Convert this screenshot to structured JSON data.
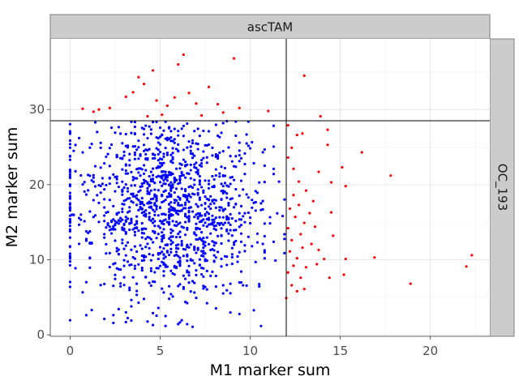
{
  "chart_data": {
    "type": "scatter",
    "title": "",
    "facet_col_label": "ascTAM",
    "facet_row_label": "OC_193",
    "xlabel": "M1 marker sum",
    "ylabel": "M2 marker sum",
    "xlim": [
      -1.1,
      23.3
    ],
    "ylim": [
      -0.2,
      39.4
    ],
    "x_ticks": [
      0,
      5,
      10,
      15,
      20
    ],
    "y_ticks": [
      0,
      10,
      20,
      30
    ],
    "grid": true,
    "legend": "none",
    "thresholds": {
      "x": 12,
      "y": 28.5
    },
    "colors": {
      "inside": "#0000ff",
      "outside": "#ff0000",
      "threshold_line": "#000000"
    },
    "seed": 193,
    "main_cluster": {
      "count": 1300,
      "x_center": 5.6,
      "x_sd": 2.5,
      "y_center": 17.5,
      "y_sd": 6.5
    },
    "outliers": [
      {
        "x": 0.7,
        "y": 30.1
      },
      {
        "x": 1.3,
        "y": 29.7
      },
      {
        "x": 1.6,
        "y": 30.0
      },
      {
        "x": 2.2,
        "y": 30.2
      },
      {
        "x": 3.1,
        "y": 31.7
      },
      {
        "x": 3.5,
        "y": 32.3
      },
      {
        "x": 3.8,
        "y": 34.3
      },
      {
        "x": 4.1,
        "y": 33.4
      },
      {
        "x": 4.3,
        "y": 29.1
      },
      {
        "x": 4.6,
        "y": 35.2
      },
      {
        "x": 4.8,
        "y": 31.2
      },
      {
        "x": 5.1,
        "y": 29.3
      },
      {
        "x": 5.4,
        "y": 30.5
      },
      {
        "x": 5.8,
        "y": 31.6
      },
      {
        "x": 6.0,
        "y": 36.0
      },
      {
        "x": 6.3,
        "y": 37.3
      },
      {
        "x": 6.6,
        "y": 32.2
      },
      {
        "x": 7.0,
        "y": 30.8
      },
      {
        "x": 7.3,
        "y": 29.2
      },
      {
        "x": 7.7,
        "y": 33.0
      },
      {
        "x": 8.2,
        "y": 30.7
      },
      {
        "x": 8.5,
        "y": 29.6
      },
      {
        "x": 9.1,
        "y": 36.8
      },
      {
        "x": 9.4,
        "y": 30.2
      },
      {
        "x": 11.0,
        "y": 29.8
      },
      {
        "x": 13.0,
        "y": 34.5
      },
      {
        "x": 13.9,
        "y": 29.1
      },
      {
        "x": 12.1,
        "y": 27.9
      },
      {
        "x": 12.6,
        "y": 26.6
      },
      {
        "x": 12.3,
        "y": 24.9
      },
      {
        "x": 12.9,
        "y": 26.8
      },
      {
        "x": 14.3,
        "y": 27.3
      },
      {
        "x": 14.3,
        "y": 25.3
      },
      {
        "x": 16.2,
        "y": 24.3
      },
      {
        "x": 17.8,
        "y": 21.2
      },
      {
        "x": 12.1,
        "y": 23.6
      },
      {
        "x": 12.4,
        "y": 22.1
      },
      {
        "x": 13.1,
        "y": 19.2
      },
      {
        "x": 13.8,
        "y": 21.7
      },
      {
        "x": 14.5,
        "y": 20.3
      },
      {
        "x": 15.3,
        "y": 19.8
      },
      {
        "x": 15.1,
        "y": 22.3
      },
      {
        "x": 12.7,
        "y": 17.3
      },
      {
        "x": 13.3,
        "y": 16.2
      },
      {
        "x": 12.2,
        "y": 16.8
      },
      {
        "x": 14.5,
        "y": 16.3
      },
      {
        "x": 12.5,
        "y": 15.7
      },
      {
        "x": 13.0,
        "y": 14.9
      },
      {
        "x": 12.1,
        "y": 14.2
      },
      {
        "x": 13.6,
        "y": 14.4
      },
      {
        "x": 12.8,
        "y": 13.4
      },
      {
        "x": 14.6,
        "y": 13.2
      },
      {
        "x": 12.3,
        "y": 12.6
      },
      {
        "x": 12.9,
        "y": 11.6
      },
      {
        "x": 13.4,
        "y": 12.1
      },
      {
        "x": 12.2,
        "y": 11.1
      },
      {
        "x": 13.8,
        "y": 11.3
      },
      {
        "x": 12.6,
        "y": 10.2
      },
      {
        "x": 14.1,
        "y": 10.1
      },
      {
        "x": 15.3,
        "y": 10.1
      },
      {
        "x": 12.4,
        "y": 9.2
      },
      {
        "x": 13.1,
        "y": 9.0
      },
      {
        "x": 13.7,
        "y": 9.4
      },
      {
        "x": 12.1,
        "y": 8.3
      },
      {
        "x": 12.8,
        "y": 7.6
      },
      {
        "x": 14.4,
        "y": 7.6
      },
      {
        "x": 15.2,
        "y": 8.0
      },
      {
        "x": 16.9,
        "y": 10.3
      },
      {
        "x": 12.3,
        "y": 6.6
      },
      {
        "x": 13.0,
        "y": 6.1
      },
      {
        "x": 12.6,
        "y": 5.8
      },
      {
        "x": 12.0,
        "y": 4.9
      },
      {
        "x": 18.9,
        "y": 6.8
      },
      {
        "x": 22.0,
        "y": 9.1
      },
      {
        "x": 22.3,
        "y": 10.6
      },
      {
        "x": 12.4,
        "y": 18.6
      },
      {
        "x": 12.7,
        "y": 20.4
      },
      {
        "x": 13.5,
        "y": 17.8
      }
    ]
  }
}
